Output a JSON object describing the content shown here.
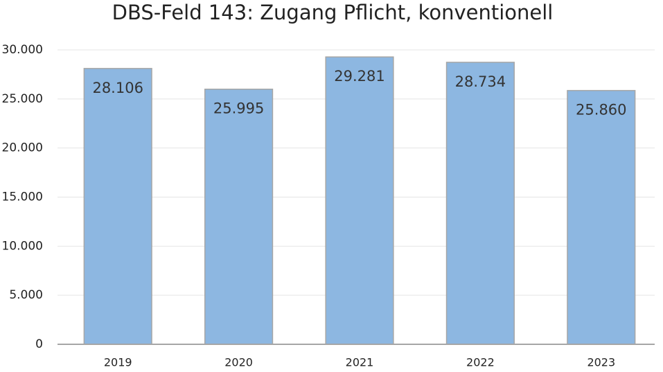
{
  "chart_data": {
    "type": "bar",
    "title": "DBS-Feld 143: Zugang Pflicht, konventionell",
    "categories": [
      "2019",
      "2020",
      "2021",
      "2022",
      "2023"
    ],
    "values": [
      28106,
      25995,
      29281,
      28734,
      25860
    ],
    "value_labels": [
      "28.106",
      "25.995",
      "29.281",
      "28.734",
      "25.860"
    ],
    "color": "#8db7e1",
    "ylim": [
      0,
      30000
    ],
    "yticks": [
      0,
      {
        "value": 5000,
        "label": "5.000"
      },
      {
        "value": 10000,
        "label": "10.000"
      },
      {
        "value": 15000,
        "label": "15.000"
      },
      {
        "value": 20000,
        "label": "20.000"
      },
      {
        "value": 25000,
        "label": "25.000"
      },
      {
        "value": 30000,
        "label": "30.000"
      }
    ],
    "grid": true
  }
}
